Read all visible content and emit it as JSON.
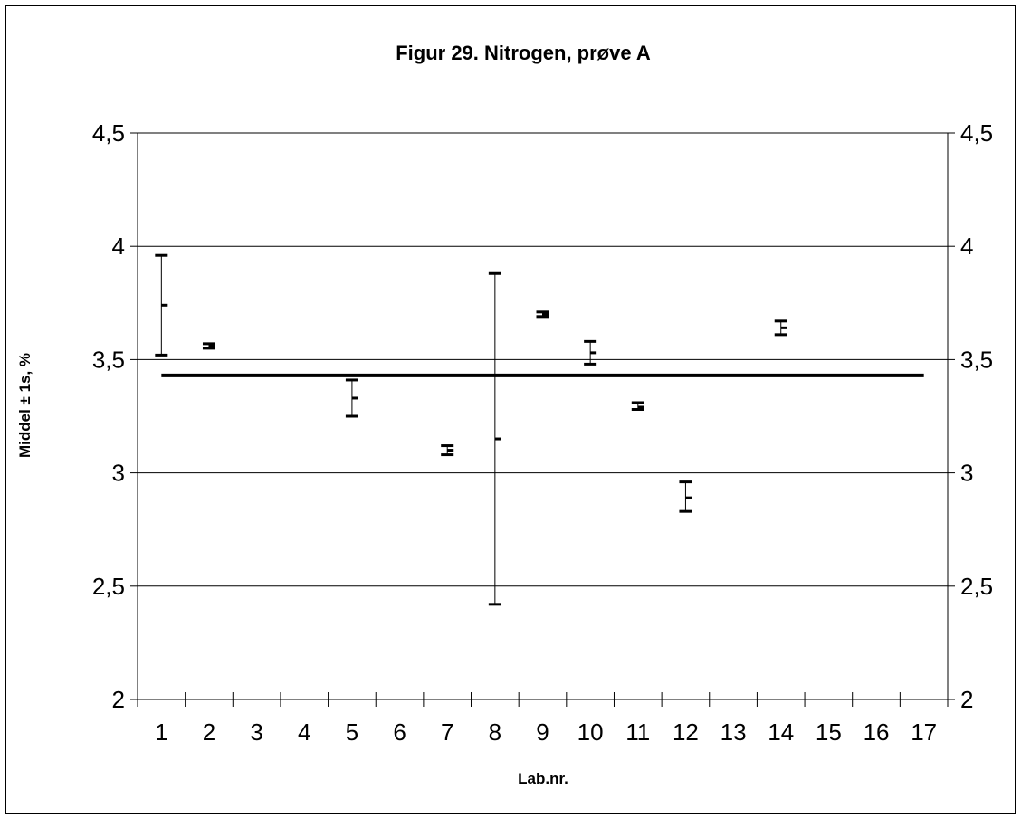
{
  "chart_data": {
    "type": "errorbar",
    "title": "Figur 29. Nitrogen, prøve A",
    "xlabel": "Lab.nr.",
    "ylabel": "Middel ± 1s, %",
    "categories": [
      "1",
      "2",
      "3",
      "4",
      "5",
      "6",
      "7",
      "8",
      "9",
      "10",
      "11",
      "12",
      "13",
      "14",
      "15",
      "16",
      "17"
    ],
    "ylim": [
      2,
      4.5
    ],
    "yticks": [
      2,
      2.5,
      3,
      3.5,
      4,
      4.5
    ],
    "ytick_labels": [
      "2",
      "2,5",
      "3",
      "3,5",
      "4",
      "4,5"
    ],
    "grid": true,
    "reference_line": 3.43,
    "series": [
      {
        "points": [
          {
            "lab": "1",
            "mean": 3.74,
            "low": 3.52,
            "high": 3.96
          },
          {
            "lab": "2",
            "mean": 3.56,
            "low": 3.55,
            "high": 3.57
          },
          {
            "lab": "5",
            "mean": 3.33,
            "low": 3.25,
            "high": 3.41
          },
          {
            "lab": "7",
            "mean": 3.1,
            "low": 3.08,
            "high": 3.12
          },
          {
            "lab": "8",
            "mean": 3.15,
            "low": 2.42,
            "high": 3.88
          },
          {
            "lab": "9",
            "mean": 3.7,
            "low": 3.69,
            "high": 3.71
          },
          {
            "lab": "10",
            "mean": 3.53,
            "low": 3.48,
            "high": 3.58
          },
          {
            "lab": "11",
            "mean": 3.29,
            "low": 3.28,
            "high": 3.31
          },
          {
            "lab": "12",
            "mean": 2.89,
            "low": 2.83,
            "high": 2.96
          },
          {
            "lab": "14",
            "mean": 3.64,
            "low": 3.61,
            "high": 3.67
          }
        ]
      }
    ]
  }
}
